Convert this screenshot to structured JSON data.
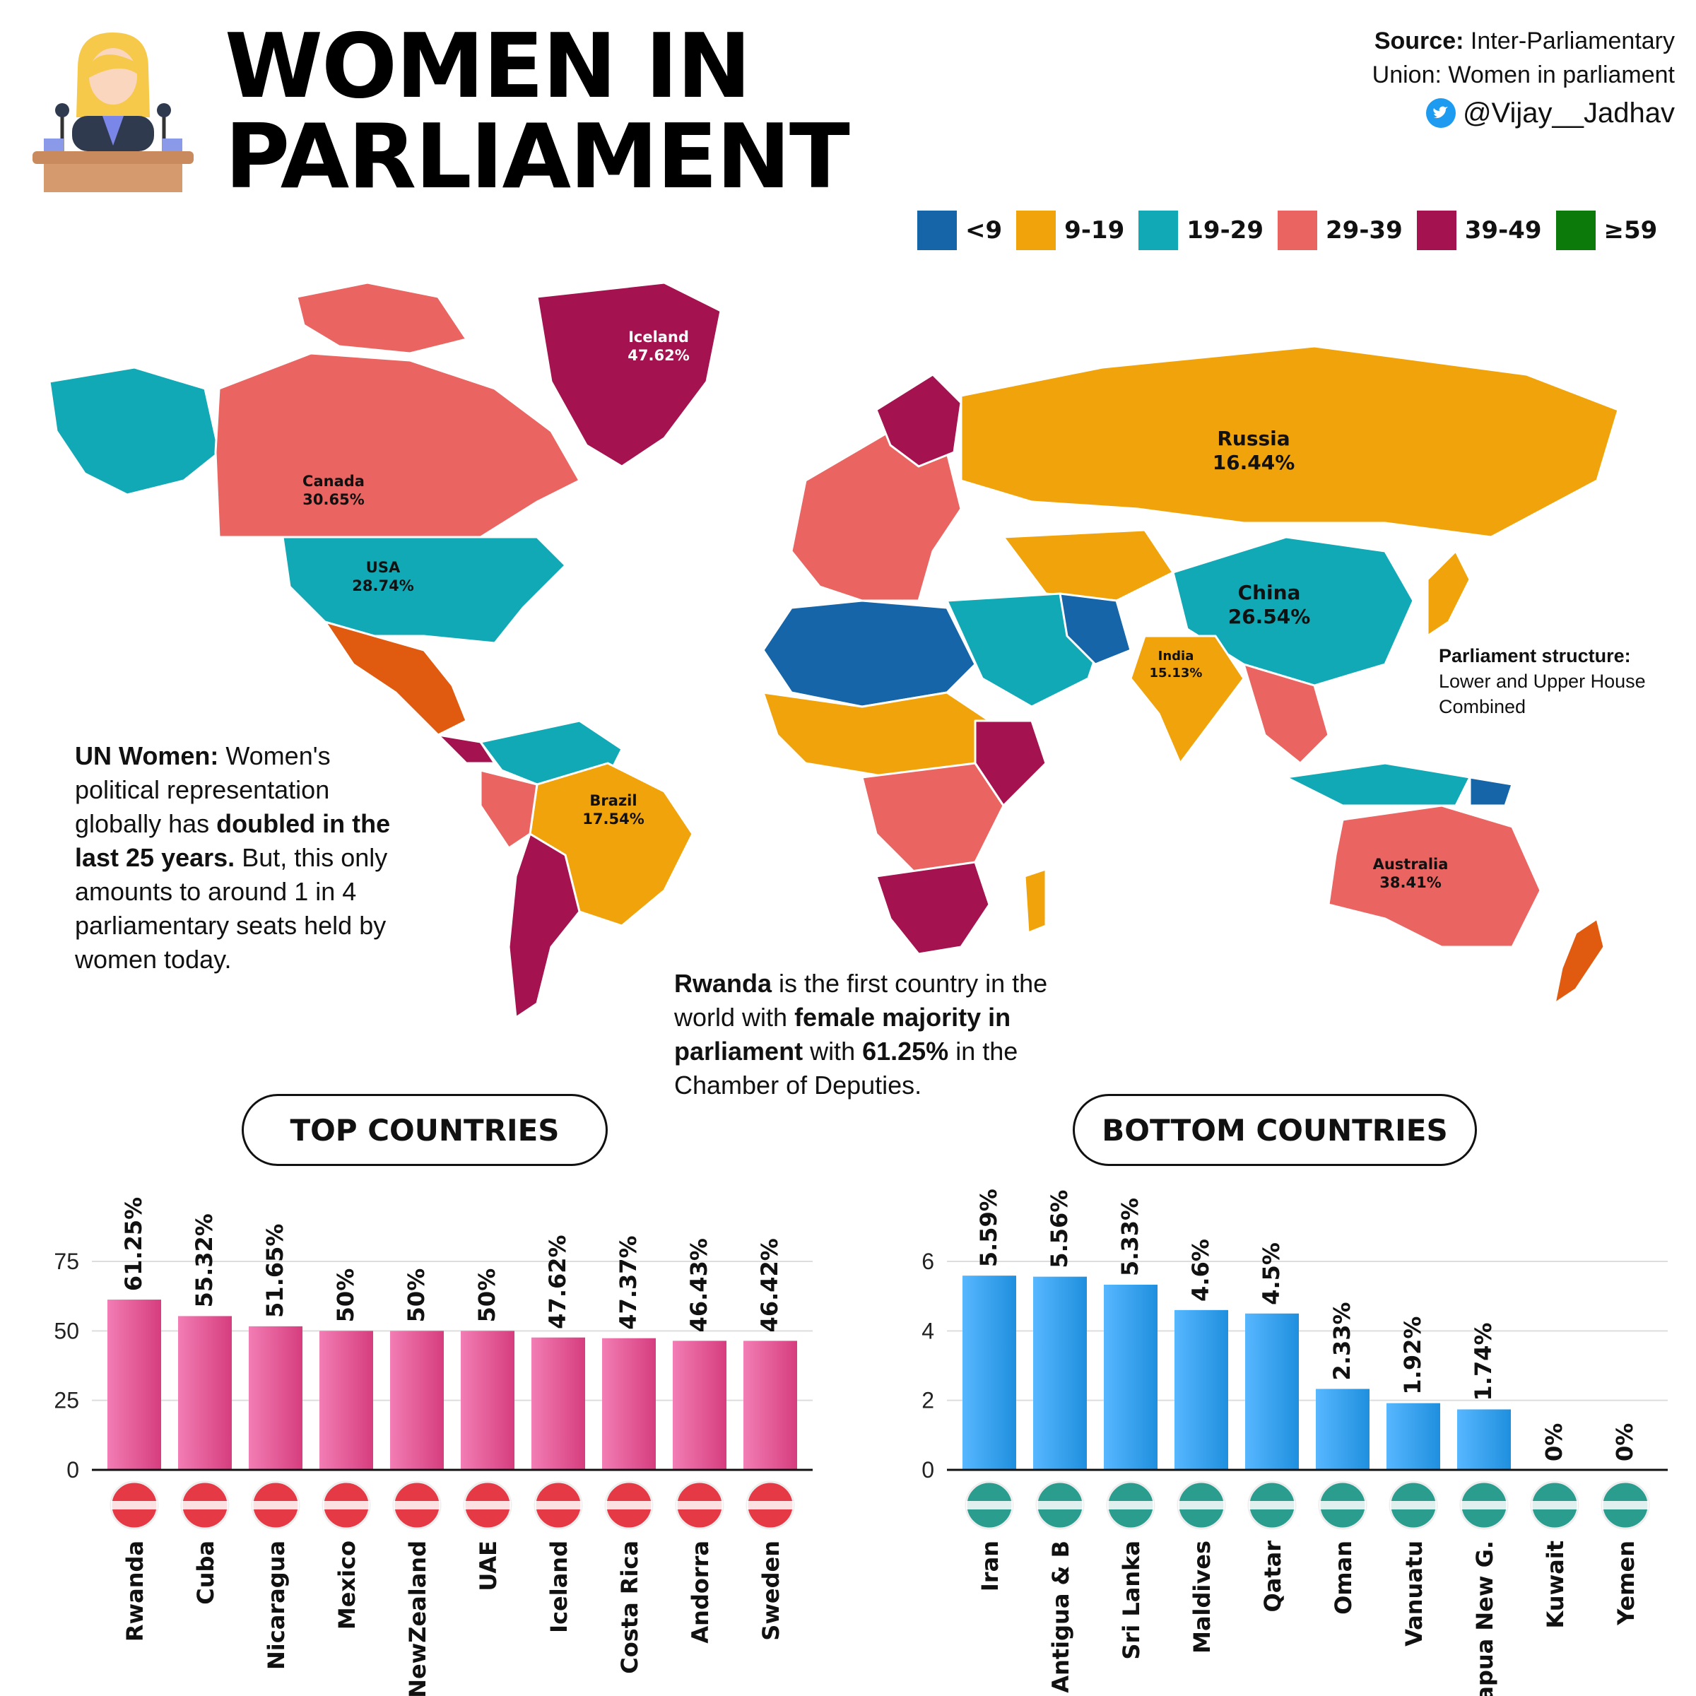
{
  "header": {
    "title_line1": "WOMEN IN",
    "title_line2": "PARLIAMENT",
    "source_label": "Source:",
    "source_text_1": "Inter-Parliamentary",
    "source_text_2": "Union: Women in parliament",
    "twitter_handle": "@Vijay__Jadhav"
  },
  "legend": [
    {
      "label": "<9",
      "color": "#1565a8"
    },
    {
      "label": "9-19",
      "color": "#f0a30a"
    },
    {
      "label": "19-29",
      "color": "#11a9b5"
    },
    {
      "label": "29-39",
      "color": "#ea6461"
    },
    {
      "label": "39-49",
      "color": "#a4124f"
    },
    {
      "label": "≥59",
      "color": "#0b7a0b"
    }
  ],
  "map_labels": [
    {
      "name": "Iceland",
      "value": "47.62%"
    },
    {
      "name": "Canada",
      "value": "30.65%"
    },
    {
      "name": "USA",
      "value": "28.74%"
    },
    {
      "name": "Russia",
      "value": "16.44%"
    },
    {
      "name": "China",
      "value": "26.54%"
    },
    {
      "name": "India",
      "value": "15.13%"
    },
    {
      "name": "Brazil",
      "value": "17.54%"
    },
    {
      "name": "Australia",
      "value": "38.41%"
    }
  ],
  "structure_note": {
    "label": "Parliament structure:",
    "line1": "Lower and Upper House",
    "line2": "Combined"
  },
  "un_note": {
    "bold1": "UN Women:",
    "t1": " Women's political representation globally has ",
    "bold2": "doubled in the last 25 years.",
    "t2": " But, this only amounts to around 1 in 4 parliamentary seats held by women today."
  },
  "rwanda_note": {
    "bold1": "Rwanda",
    "t1": " is the first country in the world with ",
    "bold2": "female majority in parliament",
    "t2": " with ",
    "bold3": "61.25%",
    "t3": " in the Chamber of Deputies."
  },
  "chart_data": [
    {
      "type": "bar",
      "title": "TOP COUNTRIES",
      "categories": [
        "Rwanda",
        "Cuba",
        "Nicaragua",
        "Mexico",
        "NewZealand",
        "UAE",
        "Iceland",
        "Costa Rica",
        "Andorra",
        "Sweden"
      ],
      "values": [
        61.25,
        55.32,
        51.65,
        50,
        50,
        50,
        47.62,
        47.37,
        46.43,
        46.42
      ],
      "value_labels": [
        "61.25%",
        "55.32%",
        "51.65%",
        "50%",
        "50%",
        "50%",
        "47.62%",
        "47.37%",
        "46.43%",
        "46.42%"
      ],
      "ylim": [
        0,
        75
      ],
      "yticks": [
        "0",
        "25",
        "50",
        "75"
      ],
      "bar_color": "#d63d7e",
      "grid": true
    },
    {
      "type": "bar",
      "title": "BOTTOM COUNTRIES",
      "categories": [
        "Iran",
        "Antigua & B",
        "Sri Lanka",
        "Maldives",
        "Qatar",
        "Oman",
        "Vanuatu",
        "Papua New G.",
        "Kuwait",
        "Yemen"
      ],
      "values": [
        5.59,
        5.56,
        5.33,
        4.6,
        4.5,
        2.33,
        1.92,
        1.74,
        0,
        0
      ],
      "value_labels": [
        "5.59%",
        "5.56%",
        "5.33%",
        "4.6%",
        "4.5%",
        "2.33%",
        "1.92%",
        "1.74%",
        "0%",
        "0%"
      ],
      "ylim": [
        0,
        6
      ],
      "yticks": [
        "0",
        "2",
        "4",
        "6"
      ],
      "bar_color": "#1f8fde",
      "grid": true
    }
  ]
}
